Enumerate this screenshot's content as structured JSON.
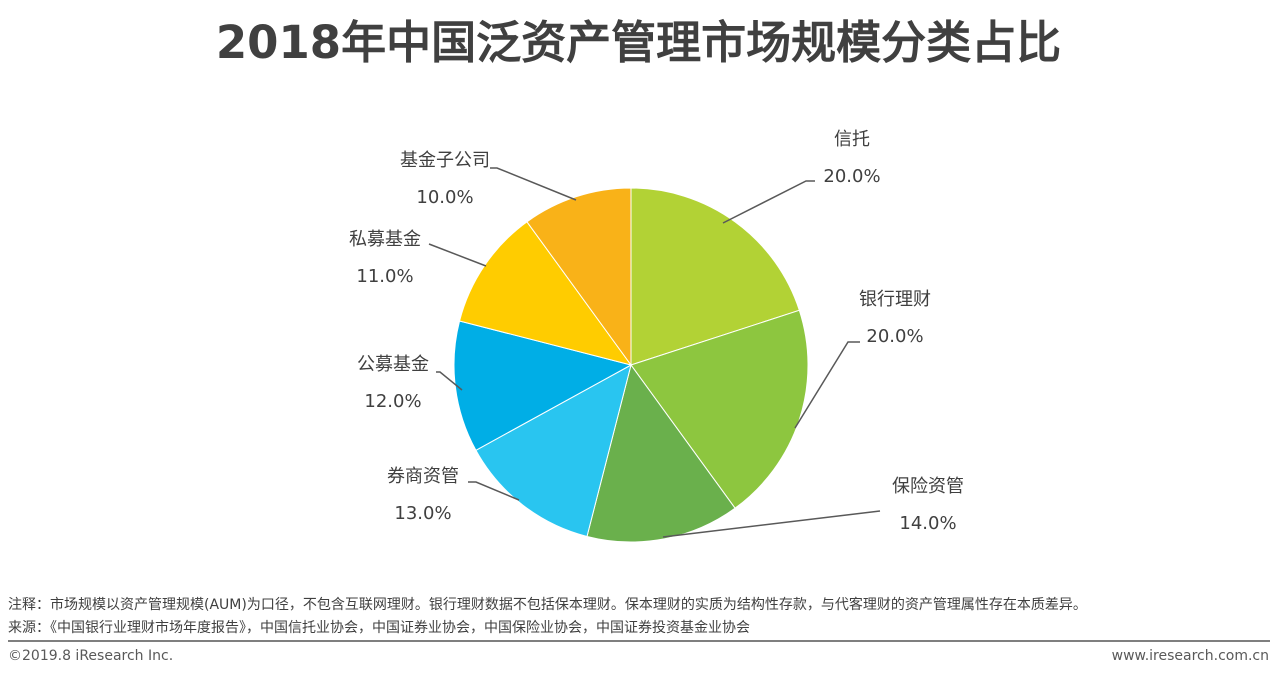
{
  "chart_data": {
    "type": "pie",
    "title": "2018年中国泛资产管理市场规模分类占比",
    "slices": [
      {
        "label": "信托",
        "value": 20.0,
        "value_label": "20.0%",
        "color": "#b2d235"
      },
      {
        "label": "银行理财",
        "value": 20.0,
        "value_label": "20.0%",
        "color": "#8dc63f"
      },
      {
        "label": "保险资管",
        "value": 14.0,
        "value_label": "14.0%",
        "color": "#6ab04c"
      },
      {
        "label": "券商资管",
        "value": 13.0,
        "value_label": "13.0%",
        "color": "#29c5f0"
      },
      {
        "label": "公募基金",
        "value": 12.0,
        "value_label": "12.0%",
        "color": "#00aee6"
      },
      {
        "label": "私募基金",
        "value": 11.0,
        "value_label": "11.0%",
        "color": "#ffcc00"
      },
      {
        "label": "基金子公司",
        "value": 10.0,
        "value_label": "10.0%",
        "color": "#f9b218"
      }
    ],
    "start_angle": "12 o'clock",
    "direction": "clockwise",
    "legend": "none"
  },
  "footer": {
    "note": "注释：市场规模以资产管理规模(AUM)为口径，不包含互联网理财。银行理财数据不包括保本理财。保本理财的实质为结构性存款，与代客理财的资产管理属性存在本质差异。",
    "source": "来源：《中国银行业理财市场年度报告》，中国信托业协会，中国证券业协会，中国保险业协会，中国证券投资基金业协会",
    "copyright": "©2019.8 iResearch Inc.",
    "website": "www.iresearch.com.cn"
  }
}
